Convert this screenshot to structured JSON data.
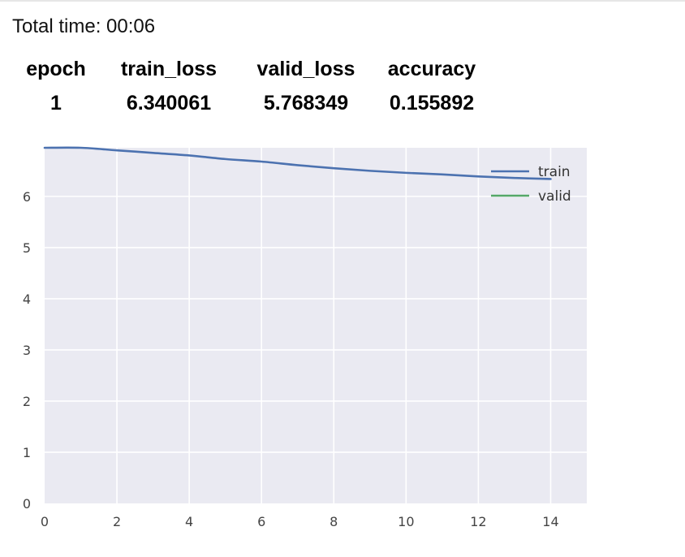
{
  "header": {
    "total_time": "Total time: 00:06"
  },
  "metrics_table": {
    "columns": [
      "epoch",
      "train_loss",
      "valid_loss",
      "accuracy"
    ],
    "rows": [
      [
        "1",
        "6.340061",
        "5.768349",
        "0.155892"
      ]
    ]
  },
  "colors": {
    "plot_background": "#eaeaf2",
    "grid": "#ffffff",
    "train": "#4c72b0",
    "valid": "#55a868"
  },
  "chart_data": {
    "type": "line",
    "title": "",
    "xlabel": "",
    "ylabel": "",
    "xlim": [
      0,
      15
    ],
    "ylim": [
      0,
      6.95
    ],
    "x_ticks": [
      0,
      2,
      4,
      6,
      8,
      10,
      12,
      14
    ],
    "y_ticks": [
      0,
      1,
      2,
      3,
      4,
      5,
      6
    ],
    "grid": true,
    "legend_position": "top-right",
    "series": [
      {
        "name": "train",
        "color": "#4c72b0",
        "x": [
          0,
          1,
          2,
          3,
          4,
          5,
          6,
          7,
          8,
          9,
          10,
          11,
          12,
          13,
          14
        ],
        "y": [
          6.95,
          6.95,
          6.9,
          6.85,
          6.8,
          6.73,
          6.68,
          6.61,
          6.55,
          6.5,
          6.46,
          6.43,
          6.39,
          6.36,
          6.34
        ]
      },
      {
        "name": "valid",
        "color": "#55a868",
        "x": [],
        "y": []
      }
    ]
  }
}
